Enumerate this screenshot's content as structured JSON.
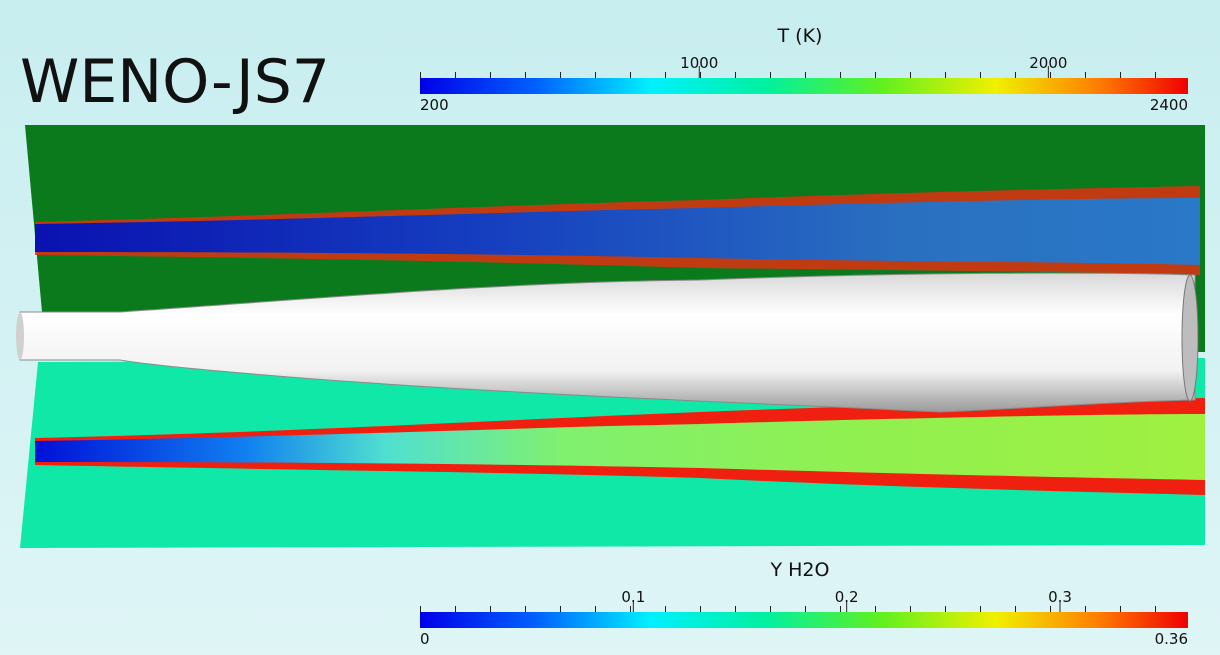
{
  "header": {
    "title": "WENO-JS7"
  },
  "colorbars": [
    {
      "label": "T (K)",
      "min": 200,
      "max": 2400,
      "ticks": [
        1000,
        2000
      ]
    },
    {
      "label": "Y H2O",
      "min": 0,
      "max": 0.36,
      "ticks": [
        0.1,
        0.2,
        0.3
      ]
    }
  ]
}
